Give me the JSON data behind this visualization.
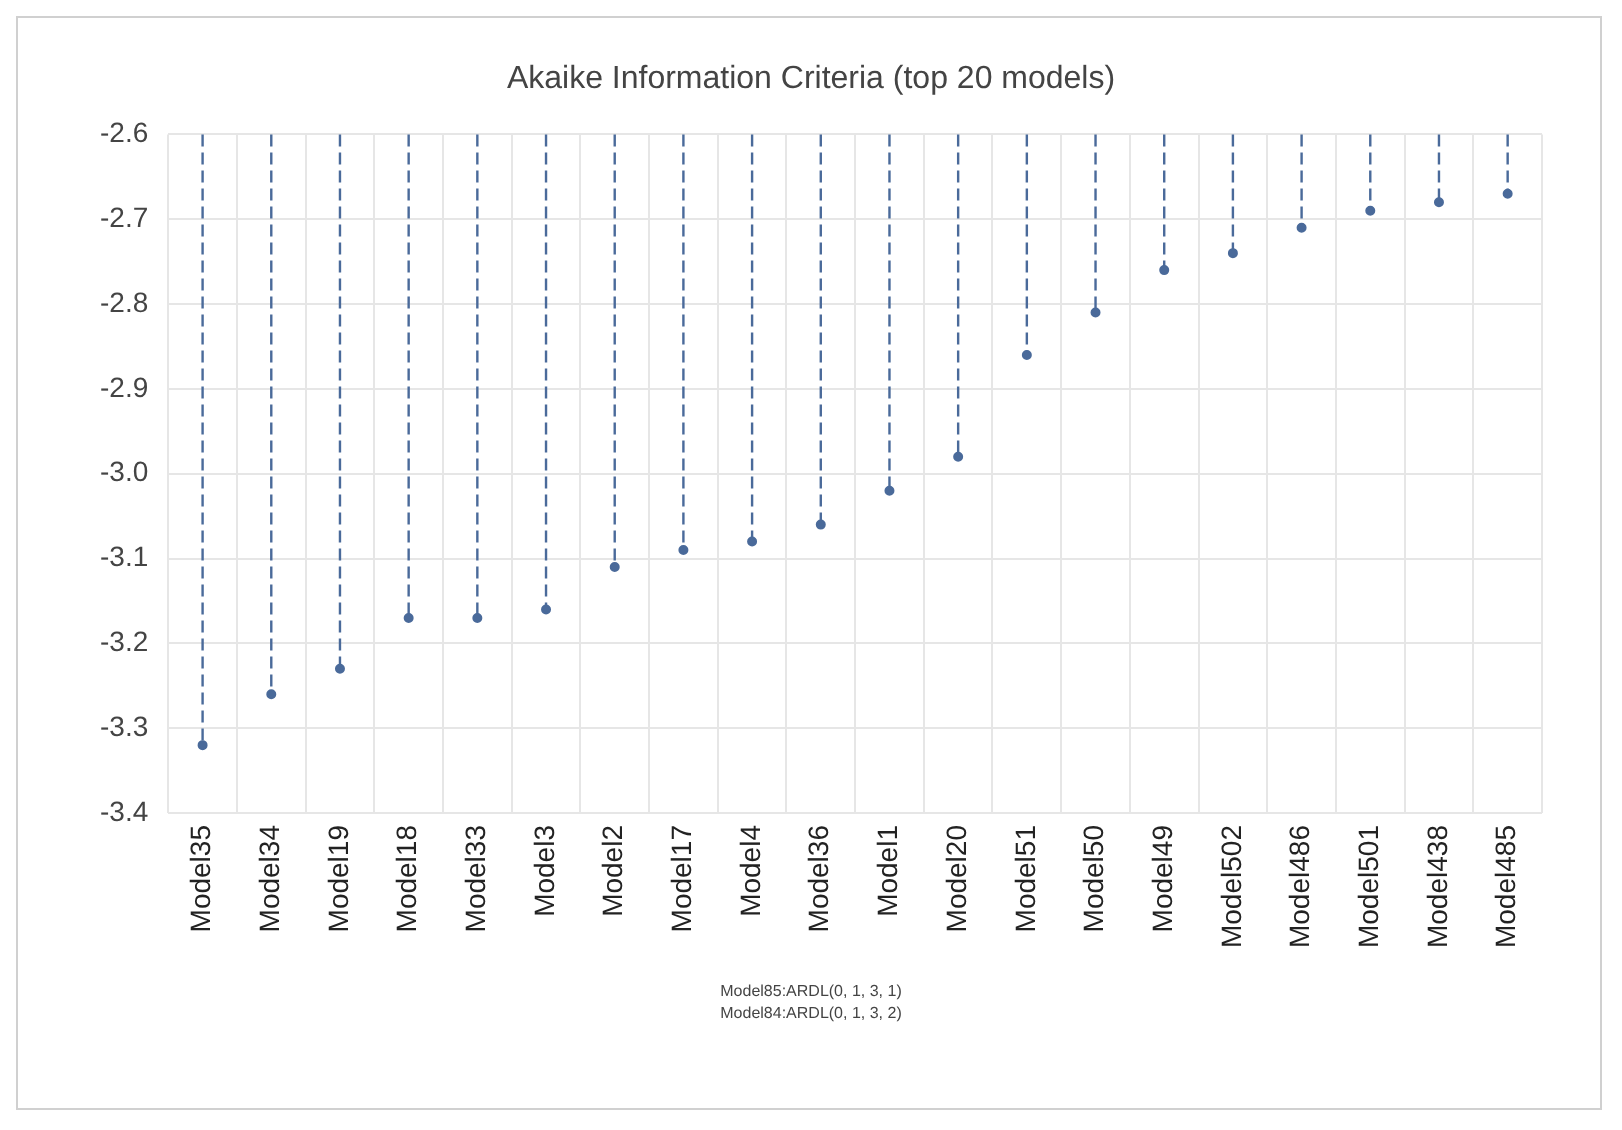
{
  "chart_data": {
    "type": "lollipop",
    "title": "Akaike Information Criteria (top 20 models)",
    "categories": [
      "Model35",
      "Model34",
      "Model19",
      "Model18",
      "Model33",
      "Model3",
      "Model2",
      "Model17",
      "Model4",
      "Model36",
      "Model1",
      "Model20",
      "Model51",
      "Model50",
      "Model49",
      "Model502",
      "Model486",
      "Model501",
      "Model438",
      "Model485"
    ],
    "values": [
      -3.32,
      -3.26,
      -3.23,
      -3.17,
      -3.17,
      -3.16,
      -3.11,
      -3.09,
      -3.08,
      -3.06,
      -3.02,
      -2.98,
      -2.86,
      -2.81,
      -2.76,
      -2.74,
      -2.71,
      -2.69,
      -2.68,
      -2.67
    ],
    "color": "#4a6a9a",
    "ylim": [
      -3.4,
      -2.6
    ],
    "yticks": [
      {
        "value": -3.4,
        "label": "-3.4"
      },
      {
        "value": -3.3,
        "label": "-3.3"
      },
      {
        "value": -3.2,
        "label": "-3.2"
      },
      {
        "value": -3.1,
        "label": "-3.1"
      },
      {
        "value": -3.0,
        "label": "-3.0"
      },
      {
        "value": -2.9,
        "label": "-2.9"
      },
      {
        "value": -2.8,
        "label": "-2.8"
      },
      {
        "value": -2.7,
        "label": "-2.7"
      },
      {
        "value": -2.6,
        "label": "-2.6"
      }
    ],
    "grid": true,
    "marker": "circle",
    "line_style": "dashed",
    "legend": false,
    "annotations": [
      "Model85:ARDL(0, 1, 3, 1)",
      "Model84:ARDL(0, 1, 3, 2)"
    ]
  }
}
